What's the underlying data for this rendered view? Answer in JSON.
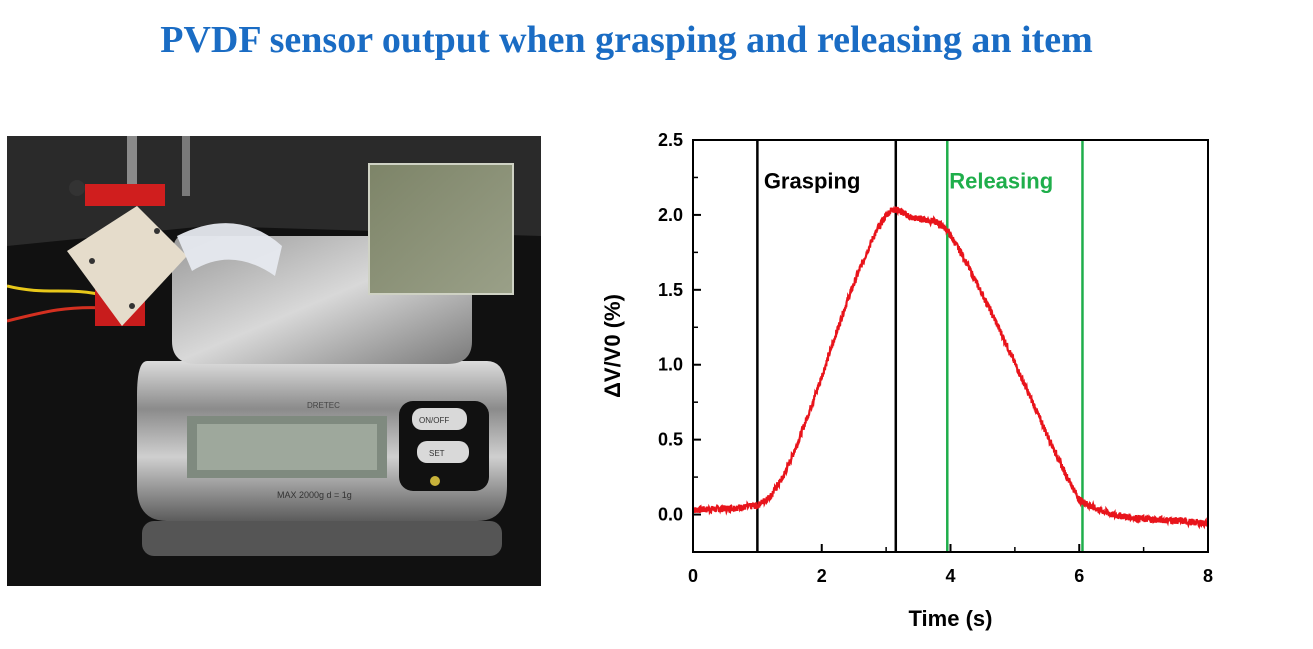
{
  "slide": {
    "title": "PVDF sensor output when grasping and releasing an item"
  },
  "photo": {
    "scale_labels": {
      "on_off": "ON/OFF",
      "set": "SET",
      "brand": "DRETEC",
      "spec": "MAX 2000g   d = 1g"
    }
  },
  "colors": {
    "title": "#1a6cc4",
    "signal": "#e8141b",
    "grasp_line": "#000000",
    "release_line": "#1fae4b"
  },
  "chart_data": {
    "type": "line",
    "xlabel": "Time (s)",
    "ylabel": "ΔV/V0 (%)",
    "xlim": [
      0,
      8
    ],
    "ylim": [
      -0.25,
      2.5
    ],
    "x_ticks": [
      0,
      2,
      4,
      6,
      8
    ],
    "y_ticks": [
      0.0,
      0.5,
      1.0,
      1.5,
      2.0,
      2.5
    ],
    "grid": false,
    "series": [
      {
        "x": [
          0,
          0.5,
          0.8,
          1.0,
          1.2,
          1.4,
          1.6,
          1.8,
          2.0,
          2.2,
          2.4,
          2.6,
          2.8,
          3.0,
          3.1,
          3.2,
          3.4,
          3.6,
          3.8,
          3.95,
          4.2,
          4.4,
          4.6,
          4.8,
          5.0,
          5.2,
          5.4,
          5.6,
          5.8,
          6.0,
          6.2,
          6.5,
          7.0,
          7.5,
          8.0
        ],
        "y": [
          0.03,
          0.04,
          0.05,
          0.06,
          0.12,
          0.25,
          0.45,
          0.68,
          0.92,
          1.18,
          1.43,
          1.65,
          1.85,
          2.0,
          2.04,
          2.03,
          1.98,
          1.97,
          1.95,
          1.9,
          1.72,
          1.55,
          1.38,
          1.2,
          1.01,
          0.82,
          0.63,
          0.44,
          0.26,
          0.1,
          0.05,
          0.0,
          -0.03,
          -0.04,
          -0.06
        ]
      }
    ],
    "vlines": [
      {
        "x": 1.0,
        "color": "#000000"
      },
      {
        "x": 3.15,
        "color": "#000000"
      },
      {
        "x": 3.95,
        "color": "#1fae4b"
      },
      {
        "x": 6.05,
        "color": "#1fae4b"
      }
    ],
    "annotations": [
      {
        "text": "Grasping",
        "x": 1.1,
        "y": 2.23,
        "color": "#000000"
      },
      {
        "text": "Releasing",
        "x": 3.98,
        "y": 2.23,
        "color": "#1fae4b"
      }
    ]
  }
}
